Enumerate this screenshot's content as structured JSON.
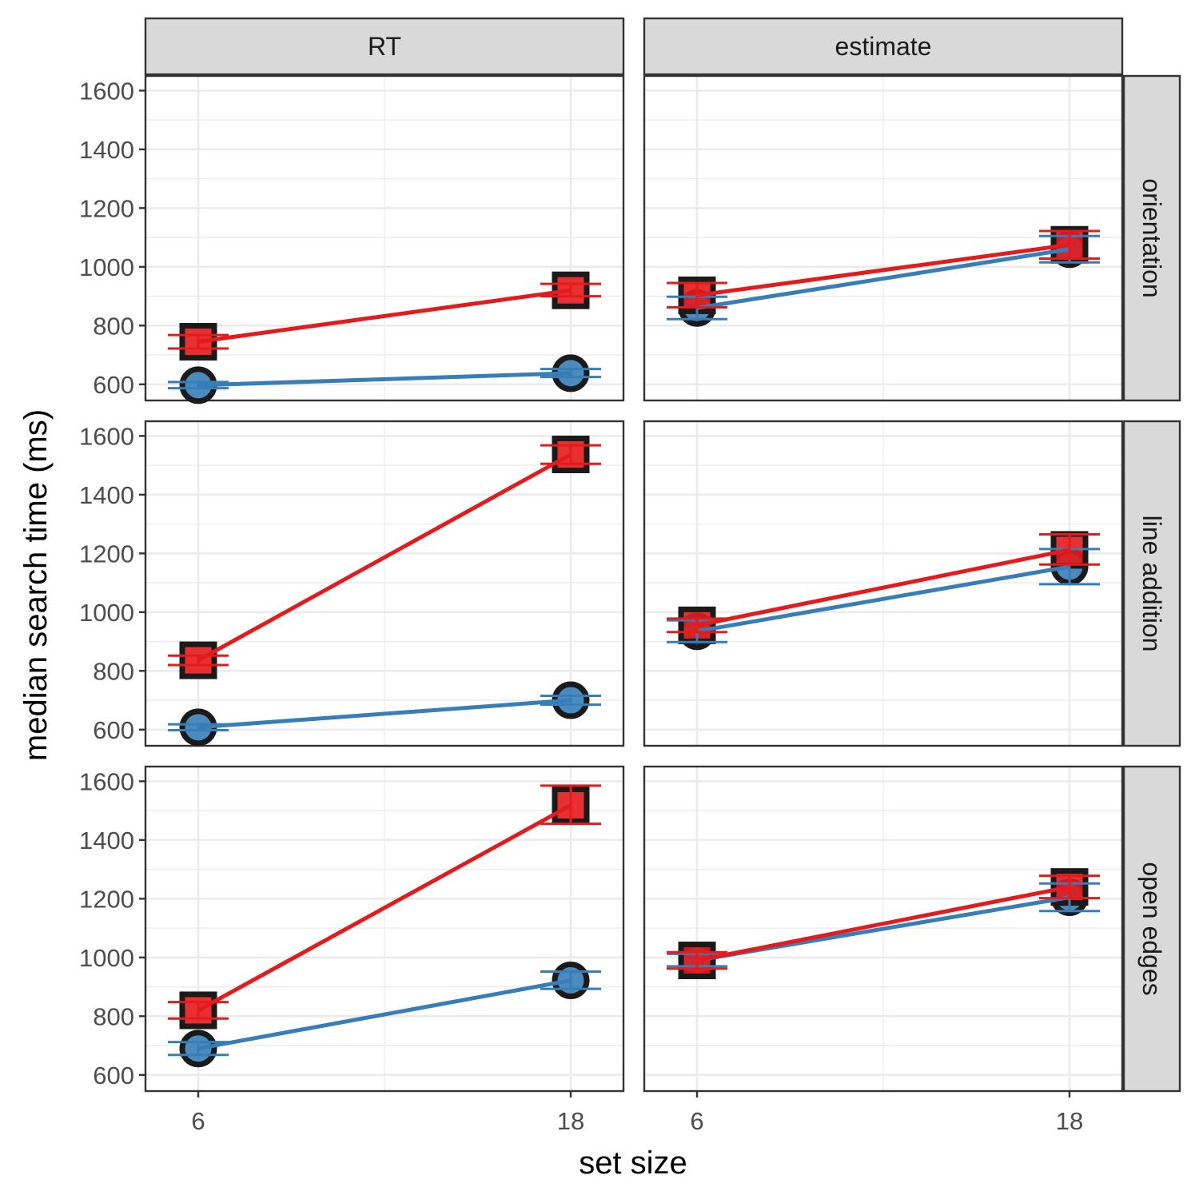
{
  "chart_data": {
    "type": "line",
    "xlabel": "set size",
    "ylabel": "median search time (ms)",
    "x_ticks": [
      6,
      18
    ],
    "y_ticks": [
      600,
      800,
      1000,
      1200,
      1400,
      1600
    ],
    "xlim": [
      4.3,
      19.7
    ],
    "ylim": [
      545,
      1650
    ],
    "columns": [
      "RT",
      "estimate"
    ],
    "rows": [
      "orientation",
      "line addition",
      "open edges"
    ],
    "series_styles": [
      {
        "key": "red",
        "color": "#e41a1c",
        "marker": "square"
      },
      {
        "key": "blue",
        "color": "#377eb8",
        "marker": "circle"
      }
    ],
    "panels": [
      {
        "column": "RT",
        "row": "orientation",
        "series": [
          {
            "key": "red",
            "points": [
              {
                "x": 6,
                "y": 745,
                "lo": 722,
                "hi": 768
              },
              {
                "x": 18,
                "y": 920,
                "lo": 900,
                "hi": 942
              }
            ]
          },
          {
            "key": "blue",
            "points": [
              {
                "x": 6,
                "y": 597,
                "lo": 587,
                "hi": 608
              },
              {
                "x": 18,
                "y": 638,
                "lo": 625,
                "hi": 652
              }
            ]
          }
        ]
      },
      {
        "column": "estimate",
        "row": "orientation",
        "series": [
          {
            "key": "red",
            "points": [
              {
                "x": 6,
                "y": 903,
                "lo": 862,
                "hi": 945
              },
              {
                "x": 18,
                "y": 1075,
                "lo": 1028,
                "hi": 1122
              }
            ]
          },
          {
            "key": "blue",
            "points": [
              {
                "x": 6,
                "y": 860,
                "lo": 822,
                "hi": 898
              },
              {
                "x": 18,
                "y": 1060,
                "lo": 1015,
                "hi": 1105
              }
            ]
          }
        ]
      },
      {
        "column": "RT",
        "row": "line addition",
        "series": [
          {
            "key": "red",
            "points": [
              {
                "x": 6,
                "y": 836,
                "lo": 820,
                "hi": 852
              },
              {
                "x": 18,
                "y": 1537,
                "lo": 1505,
                "hi": 1568
              }
            ]
          },
          {
            "key": "blue",
            "points": [
              {
                "x": 6,
                "y": 608,
                "lo": 598,
                "hi": 618
              },
              {
                "x": 18,
                "y": 700,
                "lo": 685,
                "hi": 715
              }
            ]
          }
        ]
      },
      {
        "column": "estimate",
        "row": "line addition",
        "series": [
          {
            "key": "red",
            "points": [
              {
                "x": 6,
                "y": 955,
                "lo": 932,
                "hi": 978
              },
              {
                "x": 18,
                "y": 1212,
                "lo": 1162,
                "hi": 1265
              }
            ]
          },
          {
            "key": "blue",
            "points": [
              {
                "x": 6,
                "y": 935,
                "lo": 898,
                "hi": 972
              },
              {
                "x": 18,
                "y": 1155,
                "lo": 1095,
                "hi": 1215
              }
            ]
          }
        ]
      },
      {
        "column": "RT",
        "row": "open edges",
        "series": [
          {
            "key": "red",
            "points": [
              {
                "x": 6,
                "y": 820,
                "lo": 792,
                "hi": 848
              },
              {
                "x": 18,
                "y": 1518,
                "lo": 1455,
                "hi": 1585
              }
            ]
          },
          {
            "key": "blue",
            "points": [
              {
                "x": 6,
                "y": 690,
                "lo": 668,
                "hi": 712
              },
              {
                "x": 18,
                "y": 922,
                "lo": 893,
                "hi": 952
              }
            ]
          }
        ]
      },
      {
        "column": "estimate",
        "row": "open edges",
        "series": [
          {
            "key": "red",
            "points": [
              {
                "x": 6,
                "y": 990,
                "lo": 962,
                "hi": 1018
              },
              {
                "x": 18,
                "y": 1240,
                "lo": 1202,
                "hi": 1278
              }
            ]
          },
          {
            "key": "blue",
            "points": [
              {
                "x": 6,
                "y": 990,
                "lo": 970,
                "hi": 1012
              },
              {
                "x": 18,
                "y": 1205,
                "lo": 1158,
                "hi": 1252
              }
            ]
          }
        ]
      }
    ]
  }
}
